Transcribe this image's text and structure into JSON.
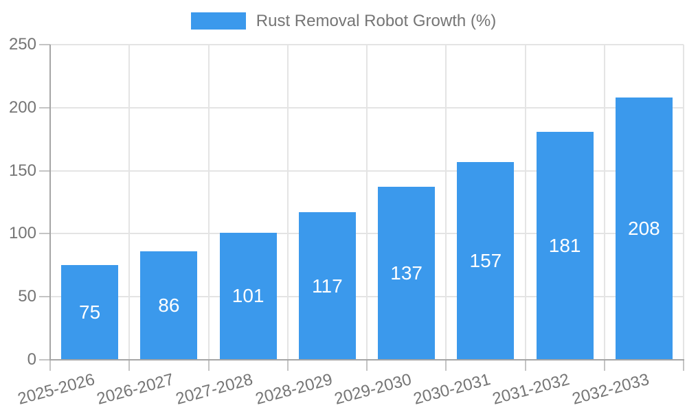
{
  "chart_data": {
    "type": "bar",
    "series_name": "Rust Removal Robot Growth (%)",
    "categories": [
      "2025-2026",
      "2026-2027",
      "2027-2028",
      "2028-2029",
      "2029-2030",
      "2030-2031",
      "2031-2032",
      "2032-2033"
    ],
    "values": [
      75,
      86,
      101,
      117,
      137,
      157,
      181,
      208
    ],
    "ylim": [
      0,
      250
    ],
    "yticks": [
      0,
      50,
      100,
      150,
      200,
      250
    ],
    "xlabel": "",
    "ylabel": "",
    "grid": true,
    "legend_position": "top-center",
    "value_label_position": "inside-center",
    "x_label_rotation_deg": -15,
    "colors": {
      "bar": "#3B99EC",
      "text": "#757575",
      "axis": "#A5A5A5",
      "tick": "#C4C4C4",
      "grid": "#E4E4E4",
      "value_label": "#FFFFFF",
      "background": "#FFFFFF"
    }
  }
}
